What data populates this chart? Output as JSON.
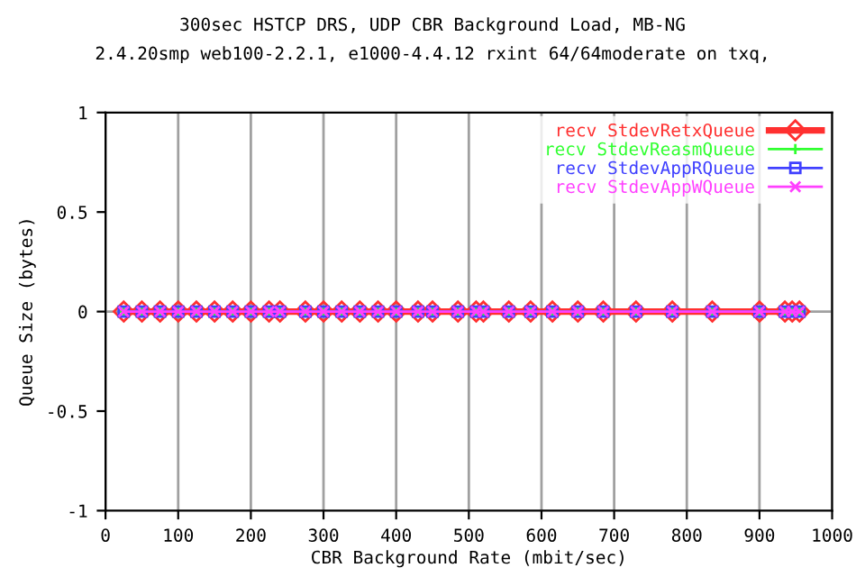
{
  "chart_data": {
    "type": "line",
    "title": "300sec HSTCP DRS, UDP CBR Background Load, MB-NG",
    "subtitle": "2.4.20smp web100-2.2.1, e1000-4.4.12 rxint 64/64moderate on txq,",
    "xlabel": "CBR Background Rate (mbit/sec)",
    "ylabel": "Queue Size (bytes)",
    "x": [
      25,
      50,
      75,
      100,
      125,
      150,
      175,
      200,
      225,
      240,
      275,
      300,
      325,
      350,
      375,
      400,
      430,
      450,
      485,
      510,
      520,
      555,
      585,
      615,
      650,
      685,
      730,
      780,
      835,
      900,
      935,
      945,
      955
    ],
    "series": [
      {
        "name": "recv StdevRetxQueue",
        "color": "#ff3030",
        "marker": "diamond",
        "values": [
          0,
          0,
          0,
          0,
          0,
          0,
          0,
          0,
          0,
          0,
          0,
          0,
          0,
          0,
          0,
          0,
          0,
          0,
          0,
          0,
          0,
          0,
          0,
          0,
          0,
          0,
          0,
          0,
          0,
          0,
          0,
          0,
          0
        ]
      },
      {
        "name": "recv StdevReasmQueue",
        "color": "#30ff30",
        "marker": "plus",
        "values": [
          0,
          0,
          0,
          0,
          0,
          0,
          0,
          0,
          0,
          0,
          0,
          0,
          0,
          0,
          0,
          0,
          0,
          0,
          0,
          0,
          0,
          0,
          0,
          0,
          0,
          0,
          0,
          0,
          0,
          0,
          0,
          0,
          0
        ]
      },
      {
        "name": "recv StdevAppRQueue",
        "color": "#4040ff",
        "marker": "square",
        "values": [
          0,
          0,
          0,
          0,
          0,
          0,
          0,
          0,
          0,
          0,
          0,
          0,
          0,
          0,
          0,
          0,
          0,
          0,
          0,
          0,
          0,
          0,
          0,
          0,
          0,
          0,
          0,
          0,
          0,
          0,
          0,
          0,
          0
        ]
      },
      {
        "name": "recv StdevAppWQueue",
        "color": "#ff40ff",
        "marker": "cross",
        "values": [
          0,
          0,
          0,
          0,
          0,
          0,
          0,
          0,
          0,
          0,
          0,
          0,
          0,
          0,
          0,
          0,
          0,
          0,
          0,
          0,
          0,
          0,
          0,
          0,
          0,
          0,
          0,
          0,
          0,
          0,
          0,
          0,
          0
        ]
      }
    ],
    "xlim": [
      0,
      1000
    ],
    "xticks": [
      0,
      100,
      200,
      300,
      400,
      500,
      600,
      700,
      800,
      900,
      1000
    ],
    "ylim": [
      -1,
      1
    ],
    "yticks": [
      -1,
      -0.5,
      0,
      0.5,
      1
    ],
    "ref_lines": [
      {
        "axis": "y",
        "value": 0,
        "color": "#a0a0a0"
      }
    ],
    "grid": "x",
    "legend": "top right"
  }
}
